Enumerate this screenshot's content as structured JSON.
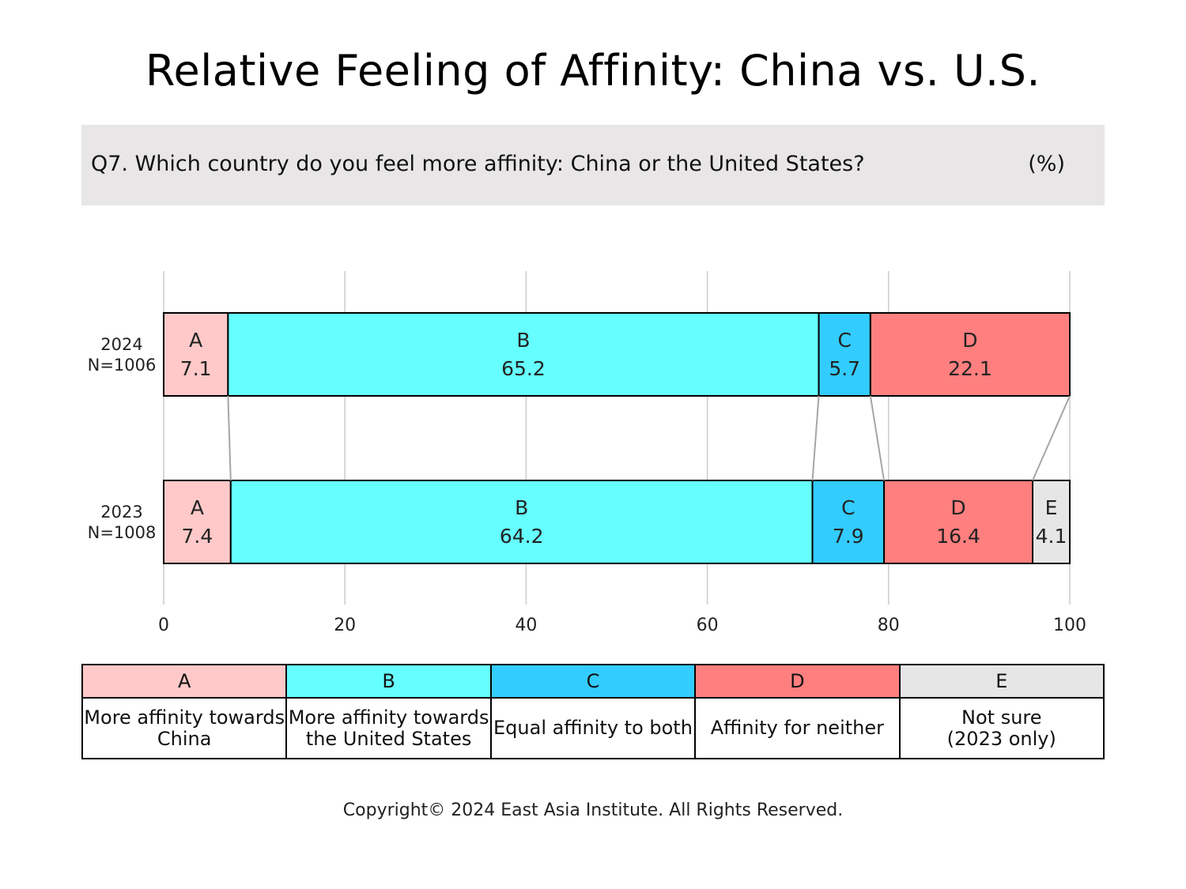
{
  "title": "Relative Feeling of Affinity: China vs. U.S.",
  "question": {
    "text": "Q7. Which country do you feel more affinity: China or the United States?",
    "unit": "(%)"
  },
  "colors": {
    "A": "#ffc9c9",
    "B": "#66ffff",
    "C": "#33ccff",
    "D": "#ff7f7f",
    "E": "#e6e6e6"
  },
  "chart_data": {
    "type": "bar",
    "orientation": "horizontal-stacked",
    "xlim": [
      0,
      100
    ],
    "x_ticks": [
      "0",
      "20",
      "40",
      "60",
      "80",
      "100"
    ],
    "grid": true,
    "rows": [
      {
        "year": "2024",
        "n": "N=1006",
        "segments": [
          {
            "key": "A",
            "value": 7.1,
            "label": "7.1"
          },
          {
            "key": "B",
            "value": 65.2,
            "label": "65.2"
          },
          {
            "key": "C",
            "value": 5.7,
            "label": "5.7"
          },
          {
            "key": "D",
            "value": 22.1,
            "label": "22.1"
          }
        ]
      },
      {
        "year": "2023",
        "n": "N=1008",
        "segments": [
          {
            "key": "A",
            "value": 7.4,
            "label": "7.4"
          },
          {
            "key": "B",
            "value": 64.2,
            "label": "64.2"
          },
          {
            "key": "C",
            "value": 7.9,
            "label": "7.9"
          },
          {
            "key": "D",
            "value": 16.4,
            "label": "16.4"
          },
          {
            "key": "E",
            "value": 4.1,
            "label": "4.1"
          }
        ]
      }
    ]
  },
  "legend": [
    {
      "key": "A",
      "desc_1": "More affinity towards",
      "desc_2": "China"
    },
    {
      "key": "B",
      "desc_1": "More affinity towards",
      "desc_2": "the United States"
    },
    {
      "key": "C",
      "desc_1": "Equal affinity to both",
      "desc_2": ""
    },
    {
      "key": "D",
      "desc_1": "Affinity for neither",
      "desc_2": ""
    },
    {
      "key": "E",
      "desc_1": "Not sure",
      "desc_2": "(2023 only)"
    }
  ],
  "copyright": "Copyright© 2024 East Asia Institute. All Rights Reserved."
}
